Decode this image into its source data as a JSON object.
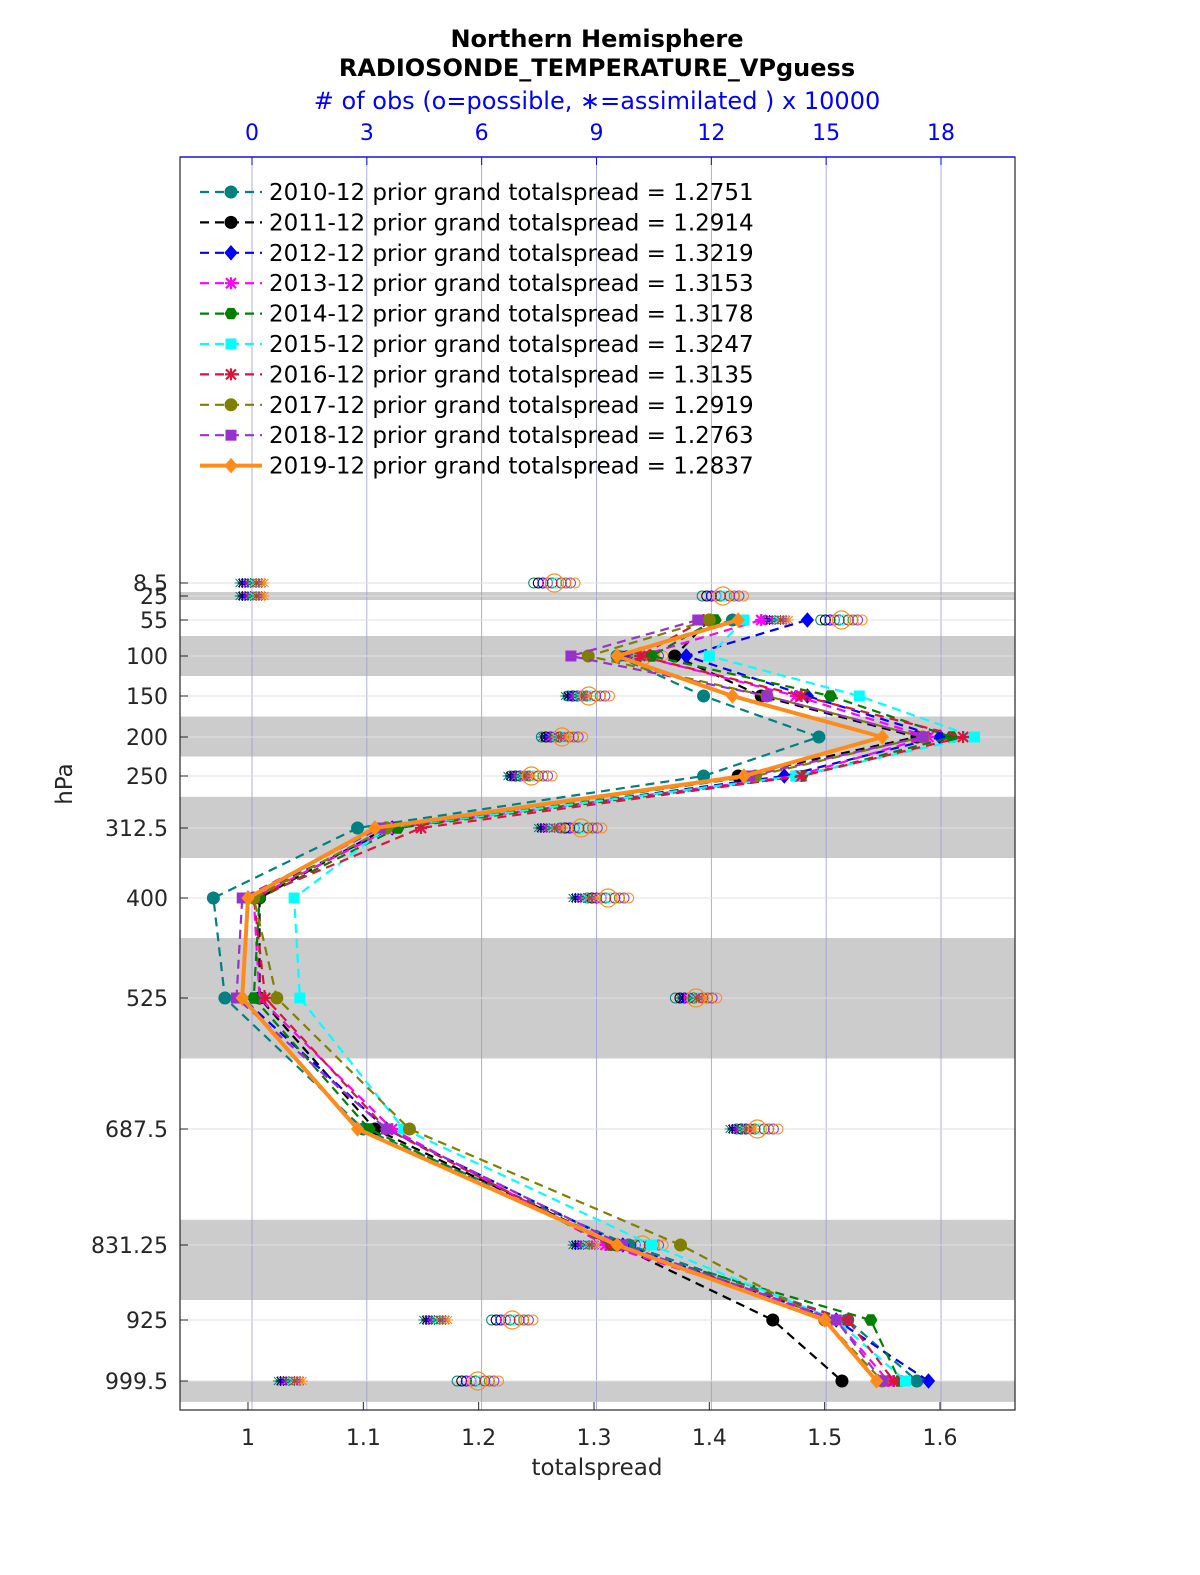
{
  "chart_data": {
    "type": "line",
    "title": "Northern Hemisphere",
    "subtitle": "RADIOSONDE_TEMPERATURE_VPguess",
    "top_axis_label": "# of obs (o=possible, ∗=assimilated ) x 10000",
    "xlabel": "totalspread",
    "ylabel": "hPa",
    "xlim": [
      0.94,
      1.665
    ],
    "x_ticks": [
      "1",
      "1.1",
      "1.2",
      "1.3",
      "1.4",
      "1.5",
      "1.6"
    ],
    "x_tick_values": [
      1.0,
      1.1,
      1.2,
      1.3,
      1.4,
      1.5,
      1.6
    ],
    "top_xlim": [
      -1.9,
      20
    ],
    "top_ticks": [
      "0",
      "3",
      "6",
      "9",
      "12",
      "15",
      "18"
    ],
    "top_tick_values": [
      0,
      3,
      6,
      9,
      12,
      15,
      18
    ],
    "levels": [
      "8.5",
      "25",
      "55",
      "100",
      "150",
      "200",
      "250",
      "312.5",
      "400",
      "525",
      "687.5",
      "831.25",
      "925",
      "999.5"
    ],
    "level_values": [
      8.5,
      25,
      55,
      100,
      150,
      200,
      250,
      312.5,
      400,
      525,
      687.5,
      831.25,
      925,
      999.5
    ],
    "shaded_bands_hPa": [
      [
        20,
        30
      ],
      [
        75,
        125
      ],
      [
        175,
        225
      ],
      [
        275,
        350
      ],
      [
        450,
        600
      ],
      [
        800,
        900
      ],
      [
        1000,
        1025
      ]
    ],
    "grid": true,
    "legend_position": "top-left",
    "series": [
      {
        "name": "2010-12 prior grand totalspread = 1.2751",
        "color": "#008080",
        "dash": true,
        "marker": "circle",
        "levels": [
          55,
          100,
          150,
          200,
          250,
          312.5,
          400,
          525,
          687.5,
          831.25,
          925,
          999.5
        ],
        "values": [
          1.42,
          1.32,
          1.395,
          1.495,
          1.395,
          1.095,
          0.97,
          0.98,
          1.1,
          1.33,
          1.52,
          1.58
        ],
        "obs_possible": [
          null,
          null,
          null,
          null,
          null,
          null,
          null,
          null,
          null,
          null,
          null,
          null
        ],
        "obs_assim": [
          null,
          null,
          null,
          null,
          null,
          null,
          null,
          null,
          null,
          null,
          null,
          null
        ]
      },
      {
        "name": "2011-12 prior grand totalspread = 1.2914",
        "color": "#000000",
        "dash": true,
        "marker": "circle",
        "levels": [
          55,
          100,
          150,
          200,
          250,
          312.5,
          400,
          525,
          687.5,
          831.25,
          925,
          999.5
        ],
        "values": [
          1.4,
          1.37,
          1.445,
          1.58,
          1.425,
          1.12,
          1.01,
          1.01,
          1.11,
          1.32,
          1.455,
          1.515
        ]
      },
      {
        "name": "2012-12 prior grand totalspread = 1.3219",
        "color": "#0000ff",
        "dash": true,
        "marker": "diamond",
        "levels": [
          55,
          100,
          150,
          200,
          250,
          312.5,
          400,
          525,
          687.5,
          831.25,
          925,
          999.5
        ],
        "values": [
          1.485,
          1.38,
          1.485,
          1.6,
          1.465,
          1.125,
          1.0,
          0.995,
          1.12,
          1.325,
          1.51,
          1.59
        ]
      },
      {
        "name": "2013-12 prior grand totalspread = 1.3153",
        "color": "#ff00ff",
        "dash": true,
        "marker": "star",
        "levels": [
          55,
          100,
          150,
          200,
          250,
          312.5,
          400,
          525,
          687.5,
          831.25,
          925,
          999.5
        ],
        "values": [
          1.445,
          1.34,
          1.475,
          1.59,
          1.475,
          1.125,
          1.005,
          1.01,
          1.125,
          1.31,
          1.51,
          1.555
        ]
      },
      {
        "name": "2014-12 prior grand totalspread = 1.3178",
        "color": "#008000",
        "dash": true,
        "marker": "hexagon",
        "levels": [
          55,
          100,
          150,
          200,
          250,
          312.5,
          400,
          525,
          687.5,
          831.25,
          925,
          999.5
        ],
        "values": [
          1.405,
          1.35,
          1.505,
          1.61,
          1.48,
          1.13,
          1.01,
          1.005,
          1.105,
          1.315,
          1.54,
          1.565
        ]
      },
      {
        "name": "2015-12 prior grand totalspread = 1.3247",
        "color": "#00ffff",
        "dash": true,
        "marker": "square",
        "levels": [
          55,
          100,
          150,
          200,
          250,
          312.5,
          400,
          525,
          687.5,
          831.25,
          925,
          999.5
        ],
        "values": [
          1.43,
          1.4,
          1.53,
          1.63,
          1.475,
          1.12,
          1.04,
          1.045,
          1.135,
          1.35,
          1.51,
          1.57
        ]
      },
      {
        "name": "2016-12 prior grand totalspread = 1.3135",
        "color": "#dc143c",
        "dash": true,
        "marker": "asterisk",
        "levels": [
          55,
          100,
          150,
          200,
          250,
          312.5,
          400,
          525,
          687.5,
          831.25,
          925,
          999.5
        ],
        "values": [
          1.395,
          1.34,
          1.48,
          1.62,
          1.48,
          1.15,
          1.005,
          1.015,
          1.12,
          1.315,
          1.52,
          1.56
        ]
      },
      {
        "name": "2017-12 prior grand totalspread = 1.2919",
        "color": "#808000",
        "dash": true,
        "marker": "circle",
        "levels": [
          55,
          100,
          150,
          200,
          250,
          312.5,
          400,
          525,
          687.5,
          831.25,
          925,
          999.5
        ],
        "values": [
          1.4,
          1.295,
          1.45,
          1.585,
          1.44,
          1.12,
          1.005,
          1.025,
          1.14,
          1.375,
          1.5,
          1.55
        ]
      },
      {
        "name": "2018-12 prior grand totalspread = 1.2763",
        "color": "#9932cc",
        "dash": true,
        "marker": "square",
        "levels": [
          55,
          100,
          150,
          200,
          250,
          312.5,
          400,
          525,
          687.5,
          831.25,
          925,
          999.5
        ],
        "values": [
          1.39,
          1.28,
          1.45,
          1.585,
          1.435,
          1.115,
          0.995,
          0.99,
          1.12,
          1.325,
          1.51,
          1.55
        ]
      },
      {
        "name": "2019-12 prior grand totalspread = 1.2837",
        "color": "#ff8c1a",
        "dash": false,
        "marker": "diamond",
        "levels": [
          55,
          100,
          150,
          200,
          250,
          312.5,
          400,
          525,
          687.5,
          831.25,
          925,
          999.5
        ],
        "values": [
          1.425,
          1.32,
          1.42,
          1.55,
          1.43,
          1.11,
          1.0,
          0.995,
          1.095,
          1.32,
          1.5,
          1.545
        ]
      }
    ],
    "obs_counts": {
      "levels": [
        8.5,
        25,
        55,
        100,
        150,
        200,
        250,
        312.5,
        400,
        525,
        687.5,
        831.25,
        925,
        999.5
      ],
      "possible": [
        7.9,
        12.3,
        15.4,
        10.2,
        8.8,
        8.1,
        7.3,
        8.6,
        9.3,
        11.6,
        13.2,
        10.2,
        6.8,
        5.9
      ],
      "assimilated": [
        0.0,
        0.0,
        13.7,
        10.0,
        8.5,
        7.9,
        7.0,
        7.8,
        8.7,
        11.5,
        12.8,
        8.7,
        4.8,
        1.0
      ]
    }
  }
}
